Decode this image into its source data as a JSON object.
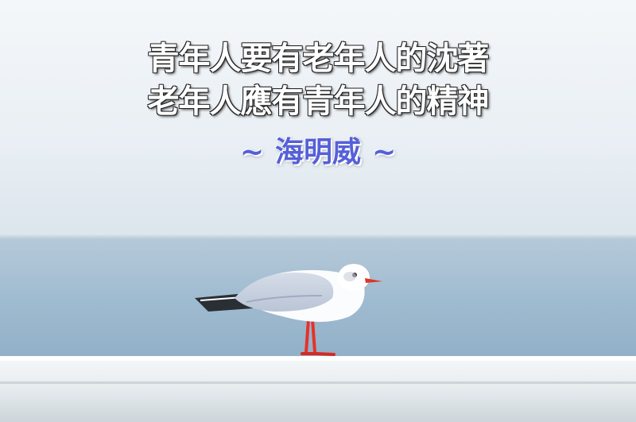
{
  "quote": {
    "line1": "青年人要有老年人的沈著",
    "line2": "老年人應有青年人的精神",
    "author_tilde_left": "~",
    "author": "海明威",
    "author_tilde_right": "~"
  },
  "colors": {
    "sky_top": "#e9f0f6",
    "sky_horizon": "#d6e1ea",
    "sea": "#9bb8cf",
    "railing": "#eef2f5",
    "author_text": "#5560d8",
    "gull_beak": "#e23325"
  },
  "icons": [
    "seagull-image"
  ]
}
